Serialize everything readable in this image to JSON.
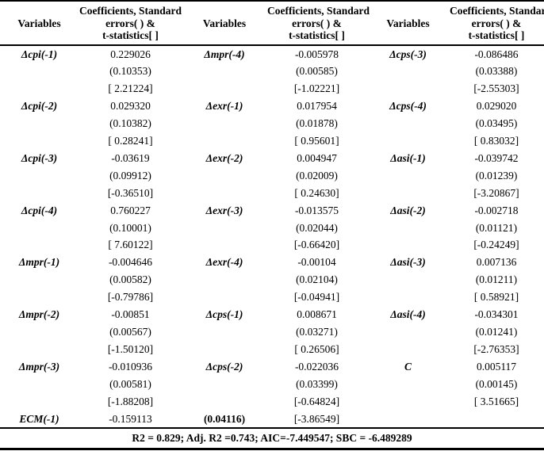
{
  "table": {
    "header": {
      "variables": "Variables",
      "coef_lines": [
        "Coefficients, Standard",
        "errors( ) &",
        "t-statistics[ ]"
      ]
    },
    "rows": [
      [
        {
          "var": "Δcpi(-1)",
          "italic": true,
          "values": [
            "0.229026",
            "(0.10353)",
            "[ 2.21224]"
          ]
        },
        {
          "var": "Δmpr(-4)",
          "italic": true,
          "values": [
            "-0.005978",
            "(0.00585)",
            "[-1.02221]"
          ]
        },
        {
          "var": "Δcps(-3)",
          "italic": true,
          "values": [
            "-0.086486",
            "(0.03388)",
            "[-2.55303]"
          ]
        }
      ],
      [
        {
          "var": "Δcpi(-2)",
          "italic": true,
          "values": [
            "0.029320",
            "(0.10382)",
            "[ 0.28241]"
          ]
        },
        {
          "var": "Δexr(-1)",
          "italic": true,
          "values": [
            "0.017954",
            "(0.01878)",
            "[ 0.95601]"
          ]
        },
        {
          "var": "Δcps(-4)",
          "italic": true,
          "values": [
            "0.029020",
            "(0.03495)",
            "[ 0.83032]"
          ]
        }
      ],
      [
        {
          "var": "Δcpi(-3)",
          "italic": true,
          "values": [
            "-0.03619",
            "(0.09912)",
            "[-0.36510]"
          ]
        },
        {
          "var": "Δexr(-2)",
          "italic": true,
          "values": [
            "0.004947",
            "(0.02009)",
            "[ 0.24630]"
          ]
        },
        {
          "var": "Δasi(-1)",
          "italic": true,
          "values": [
            "-0.039742",
            "(0.01239)",
            "[-3.20867]"
          ]
        }
      ],
      [
        {
          "var": "Δcpi(-4)",
          "italic": true,
          "values": [
            "0.760227",
            "(0.10001)",
            "[ 7.60122]"
          ]
        },
        {
          "var": "Δexr(-3)",
          "italic": true,
          "values": [
            "-0.013575",
            "(0.02044)",
            "[-0.66420]"
          ]
        },
        {
          "var": "Δasi(-2)",
          "italic": true,
          "values": [
            "-0.002718",
            "(0.01121)",
            "[-0.24249]"
          ]
        }
      ],
      [
        {
          "var": "Δmpr(-1)",
          "italic": true,
          "values": [
            "-0.004646",
            "(0.00582)",
            "[-0.79786]"
          ]
        },
        {
          "var": "Δexr(-4)",
          "italic": true,
          "values": [
            "-0.00104",
            "(0.02104)",
            "[-0.04941]"
          ]
        },
        {
          "var": "Δasi(-3)",
          "italic": true,
          "values": [
            "0.007136",
            "(0.01211)",
            "[ 0.58921]"
          ]
        }
      ],
      [
        {
          "var": "Δmpr(-2)",
          "italic": true,
          "values": [
            "-0.00851",
            "(0.00567)",
            "[-1.50120]"
          ]
        },
        {
          "var": "Δcps(-1)",
          "italic": true,
          "values": [
            "0.008671",
            "(0.03271)",
            "[ 0.26506]"
          ]
        },
        {
          "var": "Δasi(-4)",
          "italic": true,
          "values": [
            "-0.034301",
            "(0.01241)",
            "[-2.76353]"
          ]
        }
      ],
      [
        {
          "var": "Δmpr(-3)",
          "italic": true,
          "values": [
            "-0.010936",
            "(0.00581)",
            "[-1.88208]"
          ]
        },
        {
          "var": "Δcps(-2)",
          "italic": true,
          "values": [
            "-0.022036",
            "(0.03399)",
            "[-0.64824]"
          ]
        },
        {
          "var": "C",
          "italic": true,
          "values": [
            "0.005117",
            "(0.00145)",
            "[ 3.51665]"
          ]
        }
      ],
      [
        {
          "var": "ECM(-1)",
          "italic": true,
          "values": [
            "-0.159113"
          ]
        },
        {
          "var": "(0.04116)",
          "italic": false,
          "values": [
            "[-3.86549]"
          ]
        },
        {
          "var": "",
          "italic": false,
          "values": []
        }
      ]
    ],
    "footer": "R2 = 0.829; Adj. R2 =0.743; AIC=-7.449547; SBC = -6.489289"
  }
}
